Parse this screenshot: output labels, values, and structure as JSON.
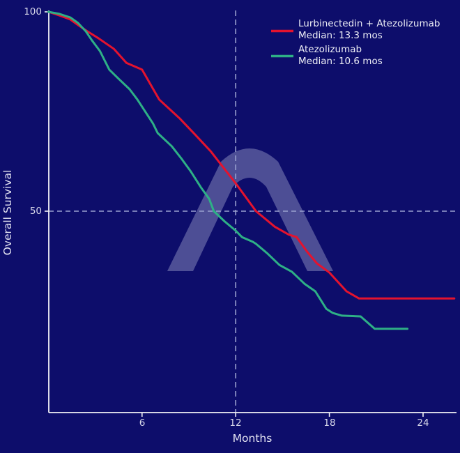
{
  "chart_data": {
    "type": "line",
    "title": "",
    "xlabel": "Months",
    "ylabel": "Overall Survival",
    "xlim": [
      0,
      26.2
    ],
    "ylim": [
      0,
      100
    ],
    "xticks": [
      6,
      12,
      18,
      24
    ],
    "yticks": [
      50,
      100
    ],
    "grid": false,
    "legend_position": "upper right",
    "reference_lines": {
      "horizontal_at_survival": 50,
      "vertical_at_month": 12
    },
    "series": [
      {
        "name": "Lurbinectedin + Atezolizumab",
        "median_label": "Median: 13.3 mos",
        "median_months": 13.3,
        "color": "#e4132e",
        "points": [
          [
            0,
            100
          ],
          [
            0.7,
            99.1
          ],
          [
            1.4,
            98.1
          ],
          [
            1.9,
            96.7
          ],
          [
            2.5,
            95.1
          ],
          [
            3.2,
            93.4
          ],
          [
            4.2,
            90.7
          ],
          [
            5.0,
            87.2
          ],
          [
            6.0,
            85.5
          ],
          [
            7.1,
            78.0
          ],
          [
            8.4,
            73.3
          ],
          [
            9.4,
            69.2
          ],
          [
            10.4,
            65.0
          ],
          [
            11.3,
            60.5
          ],
          [
            12.0,
            57.0
          ],
          [
            13.3,
            50.0
          ],
          [
            14.5,
            46.1
          ],
          [
            15.4,
            44.1
          ],
          [
            15.9,
            43.5
          ],
          [
            16.6,
            39.7
          ],
          [
            17.2,
            36.9
          ],
          [
            18.0,
            34.6
          ],
          [
            19.1,
            29.9
          ],
          [
            19.9,
            28.1
          ],
          [
            26.0,
            28.1
          ]
        ]
      },
      {
        "name": "Atezolizumab",
        "median_label": "Median: 10.6 mos",
        "median_months": 10.6,
        "color": "#2eb086",
        "points": [
          [
            0,
            100
          ],
          [
            0.7,
            99.5
          ],
          [
            1.4,
            98.6
          ],
          [
            1.9,
            97.2
          ],
          [
            2.4,
            95.1
          ],
          [
            2.8,
            92.8
          ],
          [
            3.3,
            90.2
          ],
          [
            3.9,
            85.5
          ],
          [
            4.5,
            83.2
          ],
          [
            5.2,
            80.6
          ],
          [
            5.7,
            78.0
          ],
          [
            6.7,
            72.0
          ],
          [
            7.0,
            69.6
          ],
          [
            7.9,
            66.3
          ],
          [
            8.5,
            63.3
          ],
          [
            9.1,
            60.1
          ],
          [
            9.8,
            55.8
          ],
          [
            10.3,
            53.1
          ],
          [
            10.6,
            50.0
          ],
          [
            11.3,
            47.4
          ],
          [
            12.0,
            45.1
          ],
          [
            12.4,
            43.5
          ],
          [
            13.1,
            42.3
          ],
          [
            13.3,
            41.8
          ],
          [
            14.0,
            39.5
          ],
          [
            14.8,
            36.5
          ],
          [
            15.6,
            34.8
          ],
          [
            16.4,
            31.8
          ],
          [
            17.1,
            29.9
          ],
          [
            17.8,
            25.5
          ],
          [
            18.2,
            24.5
          ],
          [
            18.8,
            23.8
          ],
          [
            20.0,
            23.6
          ],
          [
            20.9,
            20.5
          ],
          [
            23.0,
            20.5
          ]
        ]
      }
    ]
  },
  "axes": {
    "yticks": [
      "100",
      "50"
    ],
    "xticks": [
      "6",
      "12",
      "18",
      "24"
    ],
    "xlabel": "Months",
    "ylabel": "Overall Survival"
  },
  "legend": {
    "items": [
      {
        "label": "Lurbinectedin + Atezolizumab",
        "sublabel": "Median: 13.3 mos",
        "swatch_color": "#e4132e"
      },
      {
        "label": "Atezolizumab",
        "sublabel": "Median: 10.6 mos",
        "swatch_color": "#2eb086"
      }
    ]
  },
  "watermark": {
    "icon": "arch-lambda-logo",
    "color": "rgba(225,228,248,0.30)"
  },
  "colors": {
    "background": "#0d0d6b",
    "axis_spine": "#f2f2f6",
    "reference_dash": "#9aa0cf",
    "tick_label": "#d9d9ea"
  }
}
